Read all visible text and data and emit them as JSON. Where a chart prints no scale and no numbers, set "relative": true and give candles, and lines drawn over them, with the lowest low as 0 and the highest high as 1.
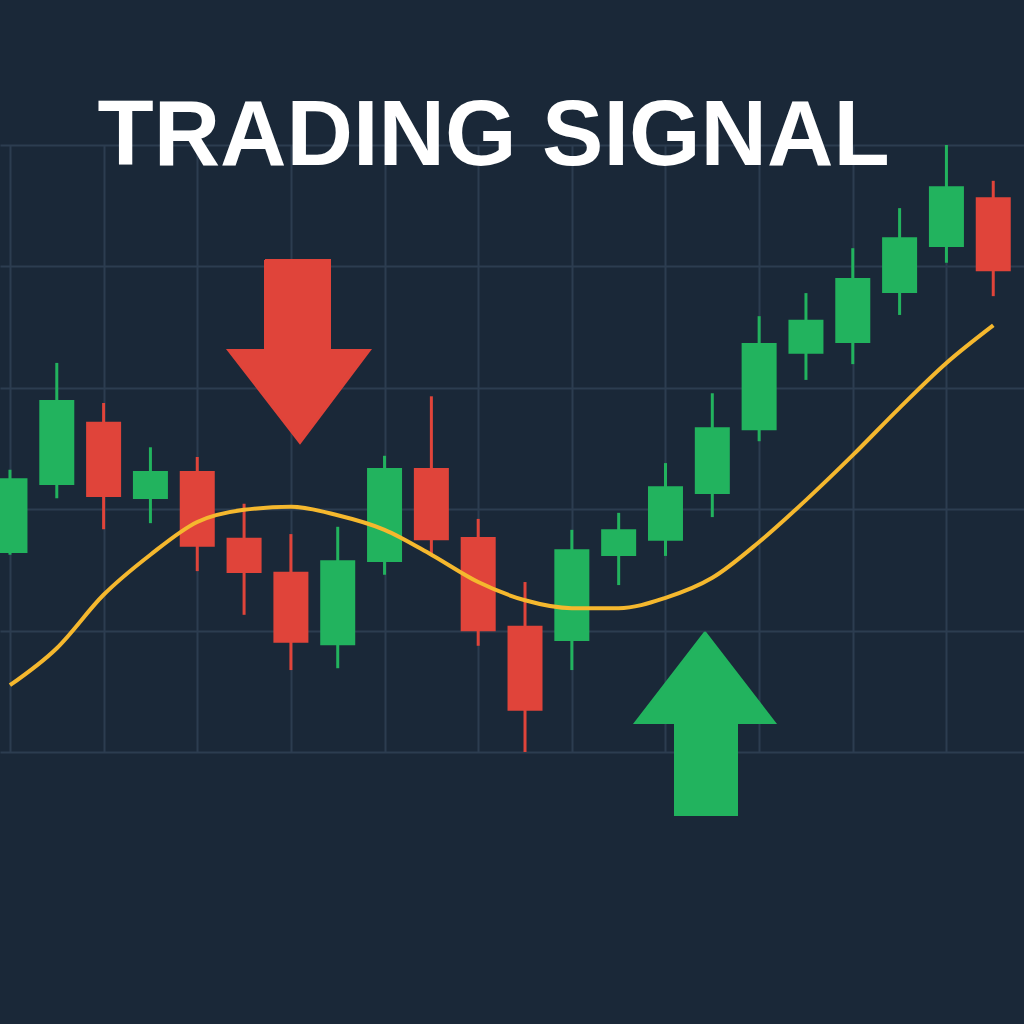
{
  "chart_data": {
    "type": "candlestick",
    "title": "TRADING SIGNAL",
    "relative": true,
    "grid": true,
    "categories": [
      null,
      null,
      null,
      null,
      null,
      null,
      null,
      null,
      null,
      null,
      null,
      null,
      null,
      null,
      null,
      null,
      null,
      null,
      null,
      null,
      null,
      null
    ],
    "ohlc": [
      [
        0.328,
        0.465,
        0.325,
        0.451
      ],
      [
        0.44,
        0.641,
        0.418,
        0.58
      ],
      [
        0.544,
        0.575,
        0.367,
        0.42
      ],
      [
        0.417,
        0.502,
        0.377,
        0.463
      ],
      [
        0.463,
        0.486,
        0.298,
        0.338
      ],
      [
        0.353,
        0.409,
        0.226,
        0.295
      ],
      [
        0.297,
        0.359,
        0.135,
        0.18
      ],
      [
        0.176,
        0.371,
        0.138,
        0.316
      ],
      [
        0.313,
        0.488,
        0.292,
        0.468
      ],
      [
        0.468,
        0.586,
        0.323,
        0.349
      ],
      [
        0.354,
        0.384,
        0.175,
        0.199
      ],
      [
        0.208,
        0.28,
        0,
        0.068
      ],
      [
        0.183,
        0.366,
        0.135,
        0.334
      ],
      [
        0.323,
        0.394,
        0.275,
        0.367
      ],
      [
        0.348,
        0.476,
        0.323,
        0.438
      ],
      [
        0.425,
        0.591,
        0.387,
        0.535
      ],
      [
        0.53,
        0.718,
        0.512,
        0.674
      ],
      [
        0.656,
        0.756,
        0.613,
        0.712
      ],
      [
        0.674,
        0.83,
        0.639,
        0.781
      ],
      [
        0.756,
        0.896,
        0.72,
        0.848
      ],
      [
        0.832,
        1,
        0.806,
        0.932
      ],
      [
        0.914,
        0.941,
        0.751,
        0.792
      ]
    ],
    "colors": [
      "#22b35e",
      "#22b35e",
      "#e0443a",
      "#22b35e",
      "#e0443a",
      "#e0443a",
      "#e0443a",
      "#22b35e",
      "#22b35e",
      "#e0443a",
      "#e0443a",
      "#e0443a",
      "#22b35e",
      "#22b35e",
      "#22b35e",
      "#22b35e",
      "#22b35e",
      "#22b35e",
      "#22b35e",
      "#22b35e",
      "#22b35e",
      "#e0443a"
    ],
    "series": [
      {
        "type": "line",
        "color": "#f5b82e",
        "values": [
          0.11,
          0.171,
          0.259,
          0.325,
          0.379,
          0.399,
          0.404,
          0.39,
          0.366,
          0.325,
          0.28,
          0.25,
          0.237,
          0.237,
          0.254,
          0.287,
          0.346,
          0.415,
          0.489,
          0.567,
          0.641,
          0.703
        ]
      }
    ]
  }
}
